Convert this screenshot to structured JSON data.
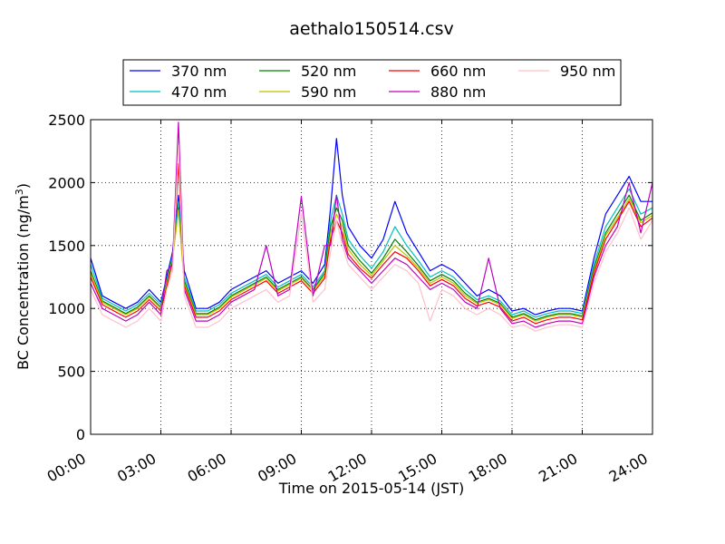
{
  "chart_data": {
    "type": "line",
    "title": "aethalo150514.csv",
    "xlabel": "Time on 2015-05-14 (JST)",
    "ylabel_main": "BC Concentration (ng/m",
    "ylabel_sup": "3",
    "ylabel_close": ")",
    "x_unit": "hours",
    "xlim": [
      0,
      24
    ],
    "ylim": [
      0,
      2500
    ],
    "x_ticks": [
      0,
      3,
      6,
      9,
      12,
      15,
      18,
      21,
      24
    ],
    "x_tick_labels": [
      "00:00",
      "03:00",
      "06:00",
      "09:00",
      "12:00",
      "15:00",
      "18:00",
      "21:00",
      "24:00"
    ],
    "y_ticks": [
      0,
      500,
      1000,
      1500,
      2000,
      2500
    ],
    "y_tick_labels": [
      "0",
      "500",
      "1000",
      "1500",
      "2000",
      "2500"
    ],
    "grid": true,
    "legend_position": "top",
    "x": [
      0.0,
      0.5,
      1.0,
      1.5,
      2.0,
      2.5,
      3.0,
      3.25,
      3.5,
      3.75,
      4.0,
      4.5,
      5.0,
      5.5,
      6.0,
      6.5,
      7.0,
      7.5,
      8.0,
      8.5,
      9.0,
      9.5,
      10.0,
      10.25,
      10.5,
      10.75,
      11.0,
      11.5,
      12.0,
      12.5,
      13.0,
      13.5,
      14.0,
      14.5,
      15.0,
      15.5,
      16.0,
      16.5,
      17.0,
      17.5,
      18.0,
      18.5,
      19.0,
      19.5,
      20.0,
      20.5,
      21.0,
      21.5,
      22.0,
      22.5,
      23.0,
      23.5,
      24.0
    ],
    "series": [
      {
        "name": "370 nm",
        "color": "#0000ff",
        "values": [
          1400,
          1100,
          1050,
          1000,
          1050,
          1150,
          1050,
          1250,
          1450,
          1900,
          1300,
          1000,
          1000,
          1050,
          1150,
          1200,
          1250,
          1300,
          1200,
          1250,
          1300,
          1200,
          1350,
          1800,
          2350,
          1900,
          1650,
          1500,
          1400,
          1550,
          1850,
          1600,
          1450,
          1300,
          1350,
          1300,
          1200,
          1100,
          1150,
          1100,
          980,
          1000,
          950,
          980,
          1000,
          1000,
          980,
          1400,
          1750,
          1900,
          2050,
          1850,
          1850
        ]
      },
      {
        "name": "470 nm",
        "color": "#00bfbf",
        "values": [
          1350,
          1080,
          1030,
          980,
          1030,
          1120,
          1030,
          1220,
          1420,
          1850,
          1250,
          980,
          980,
          1030,
          1120,
          1170,
          1220,
          1270,
          1170,
          1220,
          1270,
          1170,
          1300,
          1700,
          1900,
          1750,
          1550,
          1420,
          1320,
          1450,
          1650,
          1500,
          1380,
          1250,
          1300,
          1250,
          1150,
          1070,
          1100,
          1060,
          950,
          980,
          930,
          960,
          980,
          980,
          960,
          1350,
          1650,
          1800,
          1950,
          1750,
          1800
        ]
      },
      {
        "name": "520 nm",
        "color": "#008000",
        "values": [
          1300,
          1060,
          1010,
          960,
          1010,
          1100,
          1010,
          1200,
          1400,
          1800,
          1220,
          960,
          960,
          1010,
          1100,
          1150,
          1200,
          1250,
          1150,
          1200,
          1250,
          1150,
          1280,
          1650,
          1800,
          1700,
          1500,
          1380,
          1280,
          1400,
          1550,
          1450,
          1340,
          1220,
          1270,
          1220,
          1120,
          1050,
          1080,
          1040,
          930,
          960,
          910,
          940,
          960,
          960,
          940,
          1320,
          1600,
          1750,
          1900,
          1700,
          1760
        ]
      },
      {
        "name": "590 nm",
        "color": "#bfbf00",
        "values": [
          1280,
          1050,
          1000,
          950,
          1000,
          1090,
          1000,
          1190,
          1390,
          1780,
          1200,
          950,
          950,
          1000,
          1090,
          1140,
          1190,
          1240,
          1140,
          1190,
          1240,
          1140,
          1260,
          1600,
          1750,
          1650,
          1470,
          1350,
          1260,
          1380,
          1500,
          1420,
          1320,
          1200,
          1250,
          1200,
          1100,
          1040,
          1070,
          1030,
          920,
          950,
          900,
          930,
          950,
          950,
          930,
          1300,
          1580,
          1720,
          1870,
          1680,
          1740
        ]
      },
      {
        "name": "660 nm",
        "color": "#ff0000",
        "values": [
          1250,
          1030,
          980,
          930,
          980,
          1070,
          980,
          1170,
          1370,
          2150,
          1180,
          930,
          930,
          980,
          1070,
          1120,
          1170,
          1220,
          1120,
          1170,
          1220,
          1120,
          1240,
          1550,
          1700,
          1600,
          1430,
          1320,
          1240,
          1350,
          1450,
          1400,
          1300,
          1180,
          1230,
          1180,
          1080,
          1020,
          1050,
          1010,
          900,
          930,
          880,
          910,
          930,
          930,
          910,
          1280,
          1550,
          1700,
          1850,
          1650,
          1720
        ]
      },
      {
        "name": "880 nm",
        "color": "#bf00bf",
        "values": [
          1200,
          1000,
          950,
          900,
          950,
          1050,
          950,
          1300,
          1350,
          2480,
          1150,
          900,
          900,
          950,
          1050,
          1100,
          1150,
          1500,
          1100,
          1150,
          1890,
          1100,
          1500,
          1500,
          1900,
          1550,
          1400,
          1300,
          1200,
          1300,
          1400,
          1350,
          1250,
          1150,
          1200,
          1150,
          1050,
          1000,
          1400,
          1000,
          880,
          900,
          850,
          880,
          900,
          900,
          880,
          1250,
          1500,
          1650,
          2000,
          1600,
          2000
        ]
      },
      {
        "name": "950 nm",
        "color": "#ffc0cb",
        "values": [
          1150,
          950,
          900,
          850,
          900,
          1000,
          900,
          1150,
          1300,
          2300,
          1100,
          850,
          850,
          900,
          1000,
          1050,
          1100,
          1150,
          1050,
          1100,
          1750,
          1050,
          1150,
          1450,
          1700,
          1500,
          1350,
          1250,
          1150,
          1250,
          1350,
          1300,
          1200,
          900,
          1150,
          1100,
          1000,
          950,
          1000,
          950,
          850,
          870,
          820,
          850,
          870,
          870,
          850,
          1200,
          1450,
          1600,
          1800,
          1550,
          1700
        ]
      }
    ]
  }
}
